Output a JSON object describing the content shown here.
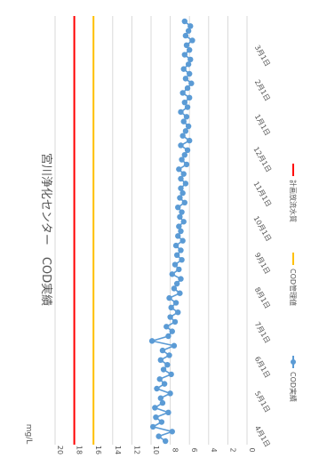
{
  "chart_data": {
    "type": "line",
    "orientation": "rotated-90-clockwise",
    "title": "宮川浄化センター　COD実績",
    "unit_label": "mg/L",
    "ylim": [
      0,
      20
    ],
    "yticks": [
      0,
      2,
      4,
      6,
      8,
      10,
      12,
      14,
      16,
      18,
      20
    ],
    "grid": true,
    "legend_position": "bottom",
    "xtick_labels": [
      "4月1日",
      "5月1日",
      "6月1日",
      "7月1日",
      "8月1日",
      "9月1日",
      "10月1日",
      "11月1日",
      "12月1日",
      "1月1日",
      "2月1日",
      "3月1日"
    ],
    "series": [
      {
        "name": "COD実績",
        "kind": "line-marker",
        "color": "#5b9bd5",
        "values": [
          8.5,
          9.2,
          7.8,
          9.8,
          8.9,
          9.5,
          8.2,
          9.6,
          8.8,
          9.0,
          8.0,
          9.4,
          8.6,
          9.1,
          7.9,
          8.7,
          8.3,
          9.0,
          8.1,
          8.8,
          7.6,
          9.9,
          8.2,
          7.8,
          8.4,
          7.5,
          8.0,
          7.2,
          7.9,
          7.4,
          8.1,
          7.0,
          7.6,
          7.3,
          6.9,
          7.8,
          7.1,
          7.5,
          6.8,
          7.3,
          6.9,
          7.4,
          6.7,
          7.2,
          6.9,
          7.1,
          6.6,
          7.0,
          6.8,
          7.2,
          6.5,
          7.0,
          6.7,
          6.9,
          6.4,
          6.9,
          6.6,
          7.1,
          6.3,
          6.8,
          6.5,
          6.2,
          6.9,
          6.0,
          6.7,
          6.4,
          6.1,
          6.6,
          6.3,
          6.9,
          6.2,
          6.5,
          6.0,
          6.7,
          6.2,
          5.8,
          6.4,
          6.0,
          6.6,
          6.1,
          5.9,
          6.5,
          6.0,
          6.3,
          5.7,
          6.4,
          6.1,
          5.9,
          6.5
        ]
      },
      {
        "name": "COD管理値",
        "kind": "reference",
        "color": "#ffc000",
        "value": 16
      },
      {
        "name": "計画放流水質",
        "kind": "reference",
        "color": "#ff0000",
        "value": 18
      }
    ]
  }
}
